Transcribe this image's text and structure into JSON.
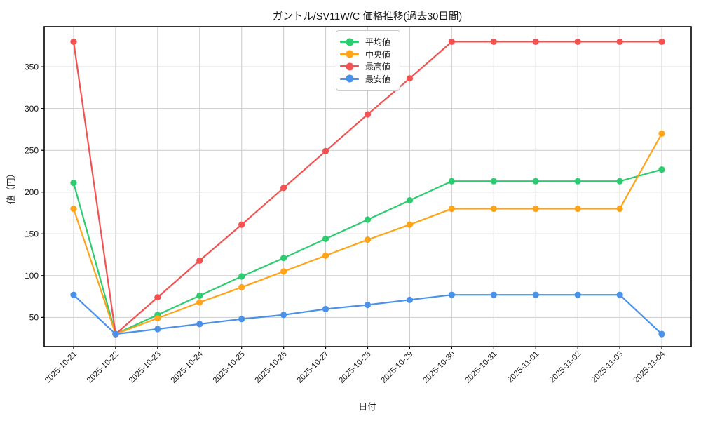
{
  "chart_data": {
    "type": "line",
    "title": "ガントル/SV11W/C 価格推移(過去30日間)",
    "xlabel": "日付",
    "ylabel": "値（円）",
    "categories": [
      "2025-10-21",
      "2025-10-22",
      "2025-10-23",
      "2025-10-24",
      "2025-10-25",
      "2025-10-26",
      "2025-10-27",
      "2025-10-28",
      "2025-10-29",
      "2025-10-30",
      "2025-10-31",
      "2025-11-01",
      "2025-11-02",
      "2025-11-03",
      "2025-11-04"
    ],
    "series": [
      {
        "key": "average",
        "name": "平均値",
        "color": "#2dcc70",
        "values": [
          211,
          30,
          53,
          76,
          99,
          121,
          144,
          167,
          190,
          213,
          213,
          213,
          213,
          213,
          227
        ]
      },
      {
        "key": "median",
        "name": "中央値",
        "color": "#ffa318",
        "values": [
          180,
          30,
          49,
          68,
          86,
          105,
          124,
          143,
          161,
          180,
          180,
          180,
          180,
          180,
          270
        ]
      },
      {
        "key": "highest",
        "name": "最高値",
        "color": "#f25252",
        "values": [
          380,
          30,
          74,
          118,
          161,
          205,
          249,
          293,
          336,
          380,
          380,
          380,
          380,
          380,
          380
        ]
      },
      {
        "key": "lowest",
        "name": "最安値",
        "color": "#4a91ea",
        "values": [
          77,
          30,
          36,
          42,
          48,
          53,
          60,
          65,
          71,
          77,
          77,
          77,
          77,
          77,
          30
        ]
      }
    ],
    "yticks": [
      50,
      100,
      150,
      200,
      250,
      300,
      350
    ],
    "ylim": [
      15,
      398
    ],
    "xlim": [
      -0.7,
      14.7
    ],
    "grid": true,
    "legend_position": "upper center",
    "xtick_rotation_deg": 45,
    "colors": {
      "grid": "#cccccc",
      "axis": "#000000",
      "text": "#1a1a1a",
      "background": "#ffffff"
    }
  }
}
